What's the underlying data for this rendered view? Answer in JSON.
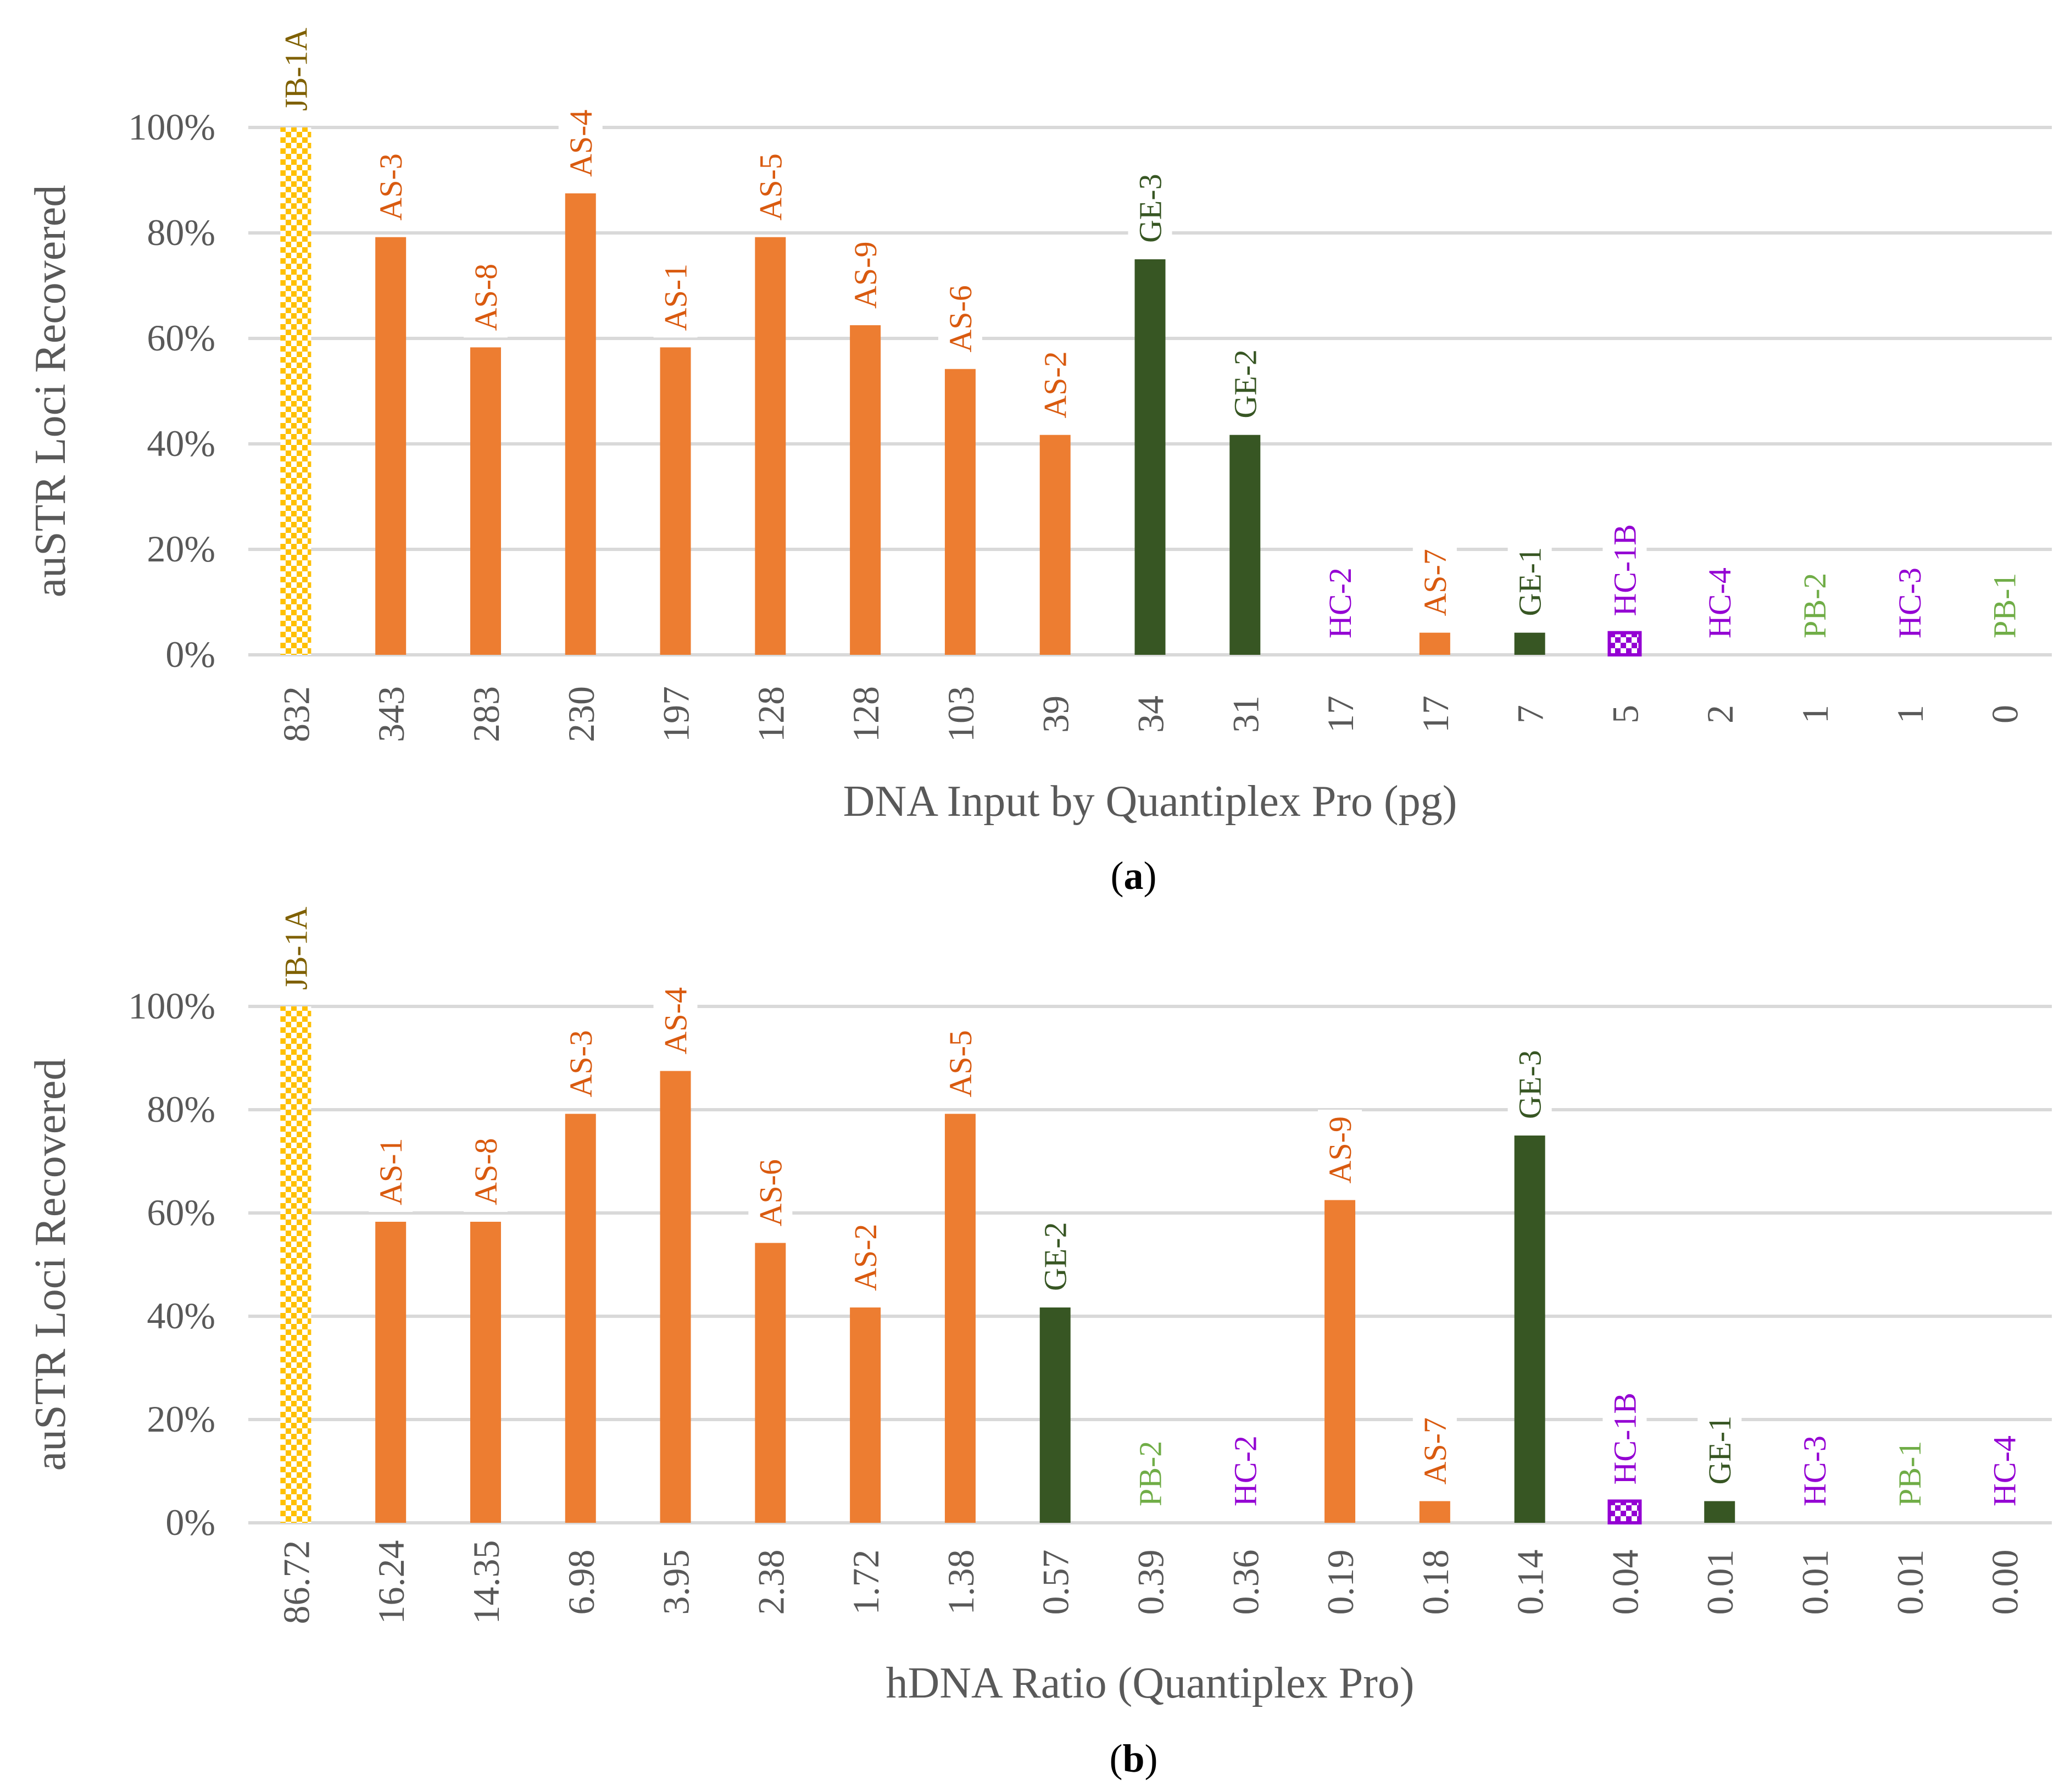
{
  "colors": {
    "JB": "#ffc000",
    "AS": "#ed7d31",
    "GE": "#375623",
    "HC": "#9400d3",
    "PB": "#70ad47",
    "JB_label": "#7f6000",
    "AS_label": "#d95a0f",
    "GE_label": "#375623",
    "HC_label": "#9400d3",
    "PB_label": "#70ad47",
    "grid": "#d9d9d9",
    "axis_text": "#595959"
  },
  "chart_data": [
    {
      "id": "a",
      "type": "bar",
      "caption_open": "(",
      "caption_letter": "a",
      "caption_close": ")",
      "xlabel": "DNA Input by Quantiplex Pro (pg)",
      "ylabel": "auSTR Loci Recovered",
      "ylim": [
        0,
        100
      ],
      "yticks": [
        "0%",
        "20%",
        "40%",
        "60%",
        "80%",
        "100%"
      ],
      "categories": [
        "832",
        "343",
        "283",
        "230",
        "197",
        "128",
        "128",
        "103",
        "39",
        "34",
        "31",
        "17",
        "17",
        "7",
        "5",
        "2",
        "1",
        "1",
        "0"
      ],
      "labels": [
        "JB-1A",
        "AS-3",
        "AS-8",
        "AS-4",
        "AS-1",
        "AS-5",
        "AS-9",
        "AS-6",
        "AS-2",
        "GE-3",
        "GE-2",
        "HC-2",
        "AS-7",
        "GE-1",
        "HC-1B",
        "HC-4",
        "PB-2",
        "HC-3",
        "PB-1"
      ],
      "groups": [
        "JB",
        "AS",
        "AS",
        "AS",
        "AS",
        "AS",
        "AS",
        "AS",
        "AS",
        "GE",
        "GE",
        "HC",
        "AS",
        "GE",
        "HC",
        "HC",
        "PB",
        "HC",
        "PB"
      ],
      "values": [
        100,
        79.2,
        58.3,
        87.5,
        58.3,
        79.2,
        62.5,
        54.2,
        41.7,
        75.0,
        41.7,
        0,
        4.2,
        4.2,
        4.2,
        0,
        0,
        0,
        0
      ]
    },
    {
      "id": "b",
      "type": "bar",
      "caption_open": "(",
      "caption_letter": "b",
      "caption_close": ")",
      "xlabel": "hDNA Ratio (Quantiplex Pro)",
      "ylabel": "auSTR Loci Recovered",
      "ylim": [
        0,
        100
      ],
      "yticks": [
        "0%",
        "20%",
        "40%",
        "60%",
        "80%",
        "100%"
      ],
      "categories": [
        "86.72",
        "16.24",
        "14.35",
        "6.98",
        "3.95",
        "2.38",
        "1.72",
        "1.38",
        "0.57",
        "0.39",
        "0.36",
        "0.19",
        "0.18",
        "0.14",
        "0.04",
        "0.01",
        "0.01",
        "0.01",
        "0.00"
      ],
      "labels": [
        "JB-1A",
        "AS-1",
        "AS-8",
        "AS-3",
        "AS-4",
        "AS-6",
        "AS-2",
        "AS-5",
        "GE-2",
        "PB-2",
        "HC-2",
        "AS-9",
        "AS-7",
        "GE-3",
        "HC-1B",
        "GE-1",
        "HC-3",
        "PB-1",
        "HC-4"
      ],
      "groups": [
        "JB",
        "AS",
        "AS",
        "AS",
        "AS",
        "AS",
        "AS",
        "AS",
        "GE",
        "PB",
        "HC",
        "AS",
        "AS",
        "GE",
        "HC",
        "GE",
        "HC",
        "PB",
        "HC"
      ],
      "values": [
        100,
        58.3,
        58.3,
        79.2,
        87.5,
        54.2,
        41.7,
        79.2,
        41.7,
        0,
        0,
        62.5,
        4.2,
        75.0,
        4.2,
        4.2,
        0,
        0,
        0
      ]
    }
  ]
}
